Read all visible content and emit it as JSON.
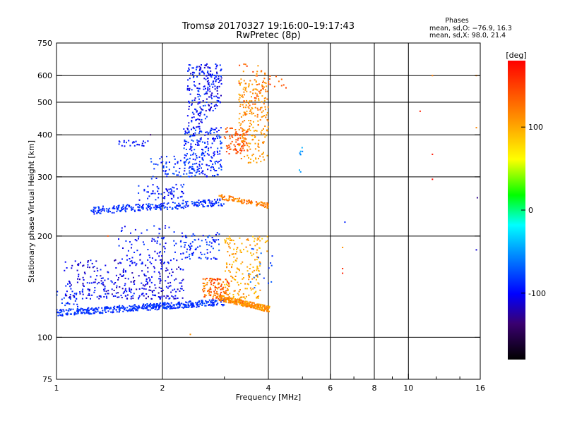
{
  "chart_data": {
    "type": "scatter",
    "title": "Tromsø 20170327 19:16:00–19:17:43",
    "subtitle": "RwPretec (8p)",
    "xlabel": "Frequency [MHz]",
    "ylabel": "Stationary phase Virtual Height [km]",
    "x_scale": "log",
    "y_scale": "log",
    "xlim": [
      1,
      16
    ],
    "ylim": [
      75,
      750
    ],
    "x_ticks": [
      1,
      2,
      4,
      6,
      8,
      10,
      16
    ],
    "y_ticks": [
      75,
      100,
      200,
      300,
      400,
      500,
      600,
      750
    ],
    "grid": true,
    "info": {
      "heading": "Phases",
      "line1": "mean, sd,O: −76.9, 16.3",
      "line2": "mean, sd,X:  98.0, 21.4"
    },
    "colorbar": {
      "label": "[deg]",
      "range": [
        -180,
        180
      ],
      "ticks": [
        100,
        0,
        -100
      ]
    },
    "clusters": [
      {
        "x": [
          1.0,
          3.0
        ],
        "y": [
          115,
          130
        ],
        "phase": [
          -95,
          -75
        ],
        "n": 520,
        "shape": "Eband"
      },
      {
        "x": [
          1.05,
          2.3
        ],
        "y": [
          130,
          170
        ],
        "phase": [
          -125,
          -85
        ],
        "n": 330,
        "shape": "Ecloud"
      },
      {
        "x": [
          1.5,
          2.2
        ],
        "y": [
          165,
          215
        ],
        "phase": [
          -110,
          -80
        ],
        "n": 80,
        "shape": "box"
      },
      {
        "x": [
          2.25,
          2.9
        ],
        "y": [
          170,
          205
        ],
        "phase": [
          -105,
          -70
        ],
        "n": 90,
        "shape": "box"
      },
      {
        "x": [
          2.9,
          4.05
        ],
        "y": [
          118,
          132
        ],
        "phase": [
          95,
          130
        ],
        "n": 300,
        "shape": "Xband"
      },
      {
        "x": [
          2.6,
          3.1
        ],
        "y": [
          130,
          150
        ],
        "phase": [
          100,
          160
        ],
        "n": 120,
        "shape": "box"
      },
      {
        "x": [
          3.0,
          3.8
        ],
        "y": [
          130,
          200
        ],
        "phase": [
          85,
          120
        ],
        "n": 170,
        "shape": "box"
      },
      {
        "x": [
          3.7,
          4.0
        ],
        "y": [
          180,
          200
        ],
        "phase": [
          70,
          120
        ],
        "n": 12,
        "shape": "box"
      },
      {
        "x": [
          1.25,
          3.0
        ],
        "y": [
          235,
          260
        ],
        "phase": [
          -100,
          -70
        ],
        "n": 260,
        "shape": "Fband"
      },
      {
        "x": [
          1.7,
          2.3
        ],
        "y": [
          255,
          285
        ],
        "phase": [
          -110,
          -80
        ],
        "n": 60,
        "shape": "box"
      },
      {
        "x": [
          2.9,
          4.0
        ],
        "y": [
          242,
          265
        ],
        "phase": [
          100,
          140
        ],
        "n": 110,
        "shape": "Fband2"
      },
      {
        "x": [
          1.85,
          2.4
        ],
        "y": [
          295,
          345
        ],
        "phase": [
          -100,
          -70
        ],
        "n": 55,
        "shape": "box"
      },
      {
        "x": [
          2.3,
          2.95
        ],
        "y": [
          300,
          420
        ],
        "phase": [
          -105,
          -70
        ],
        "n": 220,
        "shape": "box"
      },
      {
        "x": [
          2.35,
          2.95
        ],
        "y": [
          380,
          650
        ],
        "phase": [
          -120,
          -75
        ],
        "n": 240,
        "shape": "Fcusp"
      },
      {
        "x": [
          1.5,
          1.85
        ],
        "y": [
          370,
          385
        ],
        "phase": [
          -110,
          -85
        ],
        "n": 25,
        "shape": "box"
      },
      {
        "x": [
          3.0,
          3.5
        ],
        "y": [
          350,
          420
        ],
        "phase": [
          125,
          160
        ],
        "n": 90,
        "shape": "box"
      },
      {
        "x": [
          3.3,
          4.0
        ],
        "y": [
          330,
          580
        ],
        "phase": [
          95,
          125
        ],
        "n": 200,
        "shape": "box"
      },
      {
        "x": [
          3.3,
          3.95
        ],
        "y": [
          450,
          660
        ],
        "phase": [
          100,
          160
        ],
        "n": 60,
        "shape": "box"
      },
      {
        "x": [
          4.0,
          4.5
        ],
        "y": [
          550,
          600
        ],
        "phase": [
          120,
          160
        ],
        "n": 12,
        "shape": "box"
      },
      {
        "x": [
          4.9,
          5.0
        ],
        "y": [
          300,
          370
        ],
        "phase": [
          -60,
          -40
        ],
        "n": 8,
        "shape": "box"
      },
      {
        "x": [
          3.5,
          4.2
        ],
        "y": [
          140,
          185
        ],
        "phase": [
          -90,
          -60
        ],
        "n": 18,
        "shape": "box"
      }
    ],
    "outliers": [
      {
        "x": 6.6,
        "y": 220,
        "phase": -90
      },
      {
        "x": 6.5,
        "y": 185,
        "phase": 110
      },
      {
        "x": 6.5,
        "y": 160,
        "phase": 160
      },
      {
        "x": 6.5,
        "y": 155,
        "phase": 165
      },
      {
        "x": 10.8,
        "y": 470,
        "phase": 165
      },
      {
        "x": 11.7,
        "y": 350,
        "phase": 170
      },
      {
        "x": 11.7,
        "y": 295,
        "phase": 175
      },
      {
        "x": 11.7,
        "y": 600,
        "phase": 120
      },
      {
        "x": 15.6,
        "y": 600,
        "phase": 115
      },
      {
        "x": 15.6,
        "y": 420,
        "phase": 115
      },
      {
        "x": 15.7,
        "y": 260,
        "phase": -130
      },
      {
        "x": 15.6,
        "y": 182,
        "phase": -110
      },
      {
        "x": 2.4,
        "y": 102,
        "phase": 110
      },
      {
        "x": 1.4,
        "y": 200,
        "phase": 140
      },
      {
        "x": 1.85,
        "y": 400,
        "phase": -140
      }
    ]
  },
  "colors": {
    "grid": "#000000",
    "background": "#ffffff"
  }
}
